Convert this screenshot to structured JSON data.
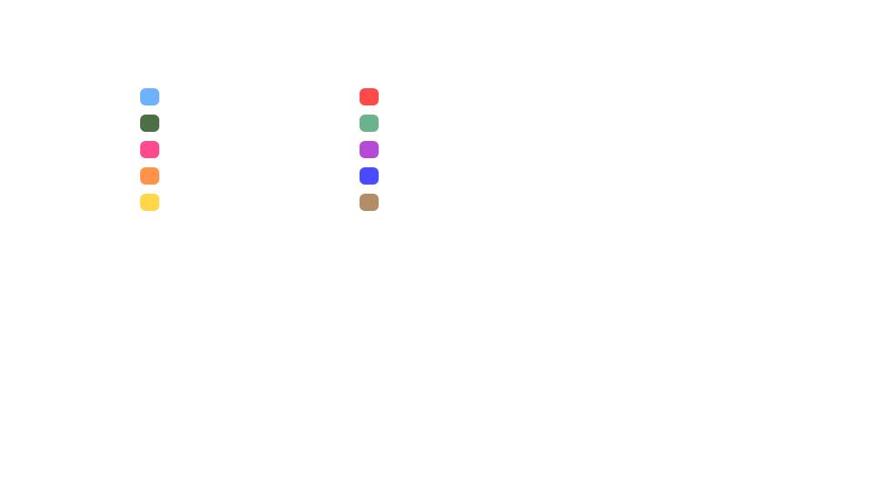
{
  "palette": {
    "swatches": [
      {
        "color": "#6EB1FF"
      },
      {
        "color": "#4E6E47"
      },
      {
        "color": "#FF4A8D"
      },
      {
        "color": "#FF934A"
      },
      {
        "color": "#FFD84A"
      },
      {
        "color": "#FF4A4A"
      },
      {
        "color": "#6CB28E"
      },
      {
        "color": "#B44AD6"
      },
      {
        "color": "#4A4AFF"
      },
      {
        "color": "#B38C68"
      }
    ]
  }
}
